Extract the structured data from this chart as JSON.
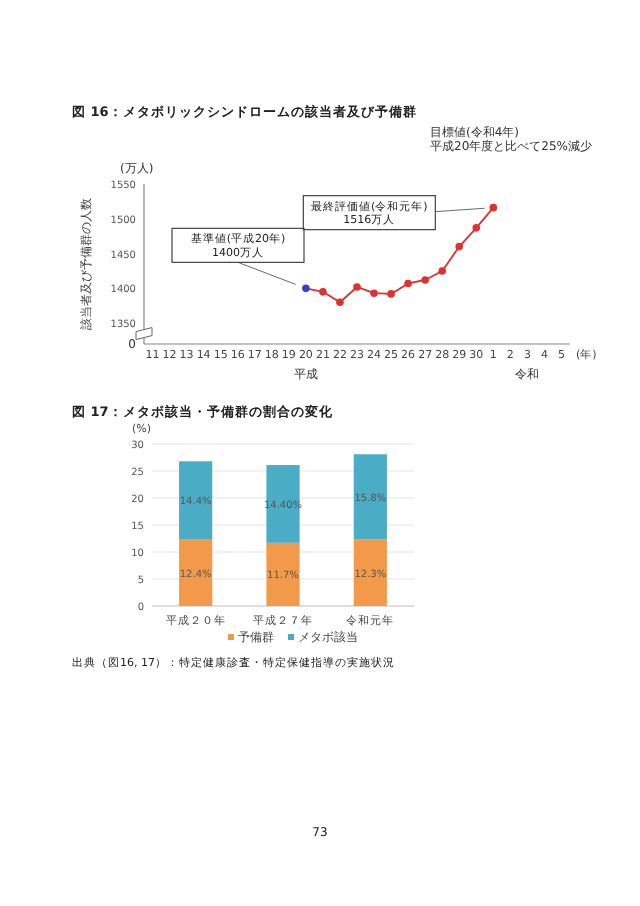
{
  "chart_data": [
    {
      "type": "line",
      "title": "図 16：メタボリックシンドロームの該当者及び予備群",
      "ylabel": "該当者及び予備群の人数",
      "xlabel": "(年)",
      "categories": [
        "11",
        "12",
        "13",
        "14",
        "15",
        "16",
        "17",
        "18",
        "19",
        "20",
        "21",
        "22",
        "23",
        "24",
        "25",
        "26",
        "27",
        "28",
        "29",
        "30",
        "1",
        "2",
        "3",
        "4",
        "5"
      ],
      "series": [
        {
          "color": "#e03030",
          "colors": [
            null,
            null,
            null,
            null,
            null,
            null,
            null,
            null,
            null,
            "#3040d0",
            "#e03030",
            "#e03030",
            "#e03030",
            "#e03030",
            "#e03030",
            "#e03030",
            "#e03030",
            "#e03030",
            "#e03030",
            "#e03030",
            "#e03030",
            null,
            null,
            null,
            null
          ],
          "values": [
            null,
            null,
            null,
            null,
            null,
            null,
            null,
            null,
            null,
            1400,
            1395,
            1380,
            1402,
            1393,
            1392,
            1407,
            1412,
            1425,
            1460,
            1487,
            1516,
            null,
            null,
            null,
            null
          ]
        }
      ],
      "ylim": [
        1320,
        1550
      ],
      "yticks": [
        1350,
        1400,
        1450,
        1500,
        1550
      ],
      "marker": "circle",
      "line_style": "solid",
      "grid": false,
      "annotations": [
        "(万人)",
        "0",
        "平成",
        "令和",
        "目標値(令和4年)\n平成20年度と比べて25%減少",
        {
          "text": "基準値(平成20年)\n1400万人",
          "x": "20",
          "y": 1400
        },
        {
          "text": "最終評価値(令和元年)\n1516万人",
          "x": "1",
          "y": 1516
        }
      ]
    },
    {
      "type": "bar",
      "title": "図 17：メタボ該当・予備群の割合の変化",
      "ylabel": "(%)",
      "stacked": true,
      "categories": [
        "平成２０年",
        "平成２７年",
        "令和元年"
      ],
      "series": [
        {
          "name": "予備群",
          "color": "#f39a4a",
          "values": [
            12.4,
            11.7,
            12.3
          ],
          "value_labels": [
            "12.4%",
            "11.7%",
            "12.3%"
          ]
        },
        {
          "name": "メタボ該当",
          "color": "#4bacc6",
          "values": [
            14.4,
            14.4,
            15.8
          ],
          "value_labels": [
            "14.4%",
            "14.40%",
            "15.8%"
          ]
        }
      ],
      "ylim": [
        0,
        30
      ],
      "yticks": [
        0,
        5,
        10,
        15,
        20,
        25,
        30
      ],
      "grid": "y",
      "legend": "bottom",
      "annotations": [
        "出典（図16, 17）：特定健康診査・特定保健指導の実施状況",
        "73"
      ]
    }
  ]
}
